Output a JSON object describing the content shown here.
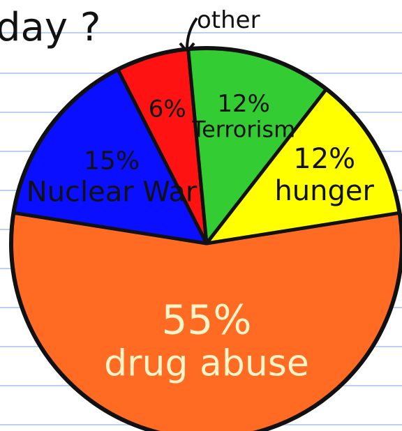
{
  "title_fragment": "day ?",
  "other_note": "other",
  "chart_data": {
    "type": "pie",
    "title": "",
    "slices": [
      {
        "label_pct": "55%",
        "label": "drug abuse",
        "value": 55,
        "color": "#ff6b22",
        "text_color": "#fff4c8"
      },
      {
        "label_pct": "15%",
        "label": "Nuclear War",
        "value": 15,
        "color": "#0a10ff",
        "text_color": "#111111"
      },
      {
        "label_pct": "6%",
        "label": "",
        "value": 6,
        "color": "#ff1212",
        "text_color": "#111111"
      },
      {
        "label_pct": "12%",
        "label": "Terrorism",
        "value": 12,
        "color": "#33cc33",
        "text_color": "#111111"
      },
      {
        "label_pct": "12%",
        "label": "hunger",
        "value": 12,
        "color": "#ffff00",
        "text_color": "#111111"
      }
    ]
  }
}
